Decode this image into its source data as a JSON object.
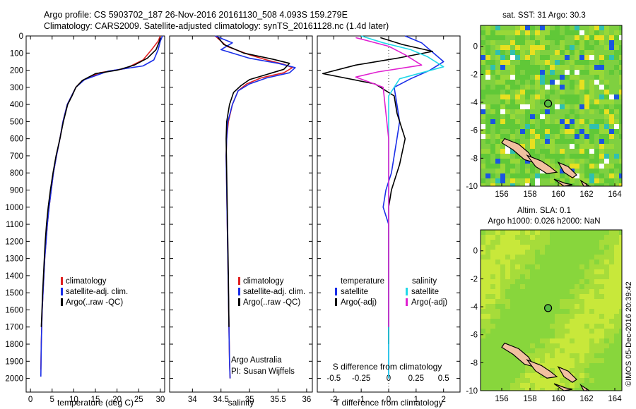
{
  "header": {
    "line1": "Argo profile: CS 5903702_187 26-Nov-2016 20161130_508 4.093S 159.279E",
    "line2": "Climatology: CARS2009. Satellite-adjusted climatology: synTS_20161128.nc (1.4d later)"
  },
  "colors": {
    "climatology": "#e02020",
    "satellite": "#1a2ee8",
    "argo": "#000000",
    "sat_salinity": "#22d8e8",
    "argo_salinity_diff": "#e020d0",
    "land": "#f2c0a0"
  },
  "chart_data": [
    {
      "type": "line",
      "id": "temperature",
      "xlabel": "temperature (deg C)",
      "xlim": [
        -1,
        31
      ],
      "xticks": [
        0,
        5,
        10,
        15,
        20,
        25,
        30
      ],
      "ylim": [
        2080,
        0
      ],
      "yticks": [
        0,
        100,
        200,
        300,
        400,
        500,
        600,
        700,
        800,
        900,
        1000,
        1100,
        1200,
        1300,
        1400,
        1500,
        1600,
        1700,
        1800,
        1900,
        2000
      ],
      "legend": [
        "climatology",
        "satellite-adj. clim.",
        "Argo(..raw -QC)"
      ],
      "series": [
        {
          "name": "climatology",
          "x": [
            30,
            29.5,
            28,
            26,
            22,
            16,
            12,
            10.5,
            9.5,
            8.5,
            7.5,
            6.8,
            6,
            5.3,
            4.8,
            4.3,
            3.9,
            3.6,
            3.3,
            3.1,
            2.9,
            2.7,
            2.6,
            2.5,
            2.4
          ],
          "y": [
            0,
            30,
            80,
            140,
            190,
            215,
            260,
            300,
            350,
            400,
            500,
            600,
            700,
            800,
            900,
            1000,
            1100,
            1200,
            1300,
            1400,
            1500,
            1600,
            1700,
            1800,
            1950
          ]
        },
        {
          "name": "satellite-adj. clim.",
          "x": [
            30.5,
            30,
            29.5,
            28.5,
            26,
            18,
            12.5,
            10.5,
            9.5,
            8.5,
            7.5,
            6.8,
            6,
            5.3,
            4.8,
            4.3,
            3.9,
            3.6,
            3.3,
            3.1,
            2.9,
            2.7,
            2.6,
            2.5,
            2.4
          ],
          "y": [
            0,
            30,
            80,
            140,
            175,
            205,
            255,
            300,
            350,
            400,
            500,
            600,
            700,
            800,
            900,
            1000,
            1100,
            1200,
            1300,
            1400,
            1500,
            1600,
            1700,
            1800,
            1990
          ]
        },
        {
          "name": "Argo(..raw -QC)",
          "x": [
            30,
            29.8,
            29,
            27,
            24,
            20,
            15,
            12,
            10.5,
            9.6,
            8.6,
            7.6,
            6.8,
            5.9,
            5.2,
            4.6,
            4.1,
            3.7,
            3.4,
            3.2,
            3,
            2.8,
            2.65,
            2.5
          ],
          "y": [
            10,
            30,
            80,
            130,
            170,
            200,
            220,
            260,
            300,
            350,
            400,
            500,
            600,
            700,
            800,
            900,
            1000,
            1100,
            1200,
            1300,
            1400,
            1500,
            1600,
            1700
          ]
        }
      ]
    },
    {
      "type": "line",
      "id": "salinity",
      "xlabel": "salinity",
      "xlim": [
        33.6,
        36.1
      ],
      "xticks": [
        34,
        34.5,
        35,
        35.5,
        36
      ],
      "ylim": [
        2080,
        0
      ],
      "legend": [
        "climatology",
        "satellite-adj. clim.",
        "Argo(..raw -QC)"
      ],
      "annotation": [
        "Argo Australia",
        "PI: Susan Wijffels"
      ],
      "series": [
        {
          "name": "climatology",
          "x": [
            34.4,
            34.6,
            35.0,
            35.3,
            35.6,
            35.75,
            35.6,
            35.2,
            34.95,
            34.8,
            34.7,
            34.63,
            34.6,
            34.59,
            34.6,
            34.61,
            34.62,
            34.63,
            34.64,
            34.65,
            34.66
          ],
          "y": [
            0,
            60,
            110,
            140,
            165,
            185,
            215,
            245,
            280,
            320,
            400,
            500,
            600,
            700,
            900,
            1100,
            1300,
            1500,
            1700,
            1900,
            2000
          ]
        },
        {
          "name": "satellite-adj. clim.",
          "x": [
            34.4,
            34.7,
            34.5,
            35.0,
            35.5,
            35.8,
            35.7,
            35.3,
            35.0,
            34.8,
            34.7,
            34.62,
            34.6,
            34.59,
            34.6,
            34.61,
            34.62,
            34.63,
            34.64,
            34.65,
            34.66
          ],
          "y": [
            0,
            40,
            80,
            130,
            160,
            185,
            215,
            245,
            280,
            320,
            400,
            500,
            600,
            700,
            900,
            1100,
            1300,
            1500,
            1700,
            1900,
            2000
          ]
        },
        {
          "name": "Argo(..raw -QC)",
          "x": [
            34.45,
            34.55,
            34.9,
            35.4,
            35.7,
            35.6,
            35.3,
            35.0,
            34.85,
            34.72,
            34.65,
            34.6,
            34.59,
            34.6,
            34.61,
            34.62,
            34.63,
            34.64
          ],
          "y": [
            10,
            50,
            100,
            135,
            160,
            195,
            225,
            255,
            290,
            330,
            400,
            500,
            600,
            800,
            1000,
            1200,
            1400,
            1700
          ]
        }
      ]
    },
    {
      "type": "line",
      "id": "difference",
      "xlabel": "T difference from climatology",
      "xlabel_top": "S difference from climatology",
      "xlim": [
        -2.6,
        2.6
      ],
      "xticks": [
        -2,
        -1,
        0,
        1,
        2
      ],
      "xticks_top": [
        -0.5,
        -0.25,
        0,
        0.25,
        0.5
      ],
      "ylim": [
        2080,
        0
      ],
      "legend_temperature_title": "temperature",
      "legend_salinity_title": "salinity",
      "legend": [
        "satellite",
        "Argo(-adj)",
        "satellite",
        "Argo(-adj)"
      ],
      "series": [
        {
          "name": "satellite",
          "x": [
            0.6,
            1.2,
            2.0,
            1.5,
            0.8,
            0.2,
            0.3,
            0.4,
            0.3,
            0.2,
            0.1,
            -0.1,
            -0.2,
            0.0,
            0.0,
            0.0,
            0.0,
            0.0,
            0.0
          ],
          "y": [
            0,
            40,
            150,
            200,
            250,
            300,
            400,
            500,
            600,
            700,
            800,
            900,
            1000,
            1100,
            1300,
            1500,
            1700,
            1900,
            2000
          ]
        },
        {
          "name": "Argo(-adj)",
          "x": [
            -0.3,
            0.5,
            1.6,
            0.3,
            -1.2,
            -2.4,
            -0.5,
            0.2,
            0.3,
            0.6,
            0.4,
            0.1,
            0.0,
            0.0,
            0.0,
            0.0,
            0.0,
            0.0
          ],
          "y": [
            10,
            50,
            90,
            130,
            170,
            220,
            280,
            350,
            450,
            600,
            750,
            900,
            1000,
            1200,
            1400,
            1550,
            1700,
            1800
          ]
        },
        {
          "name": "satellite",
          "x": [
            -0.25,
            -0.05,
            0.2,
            0.35,
            0.5,
            0.1,
            0.0,
            0.0,
            0.0,
            0.0,
            0.0
          ],
          "y": [
            0,
            40,
            80,
            120,
            180,
            250,
            350,
            600,
            1000,
            1500,
            2000
          ]
        },
        {
          "name": "Argo(-adj)",
          "x": [
            -0.3,
            0.0,
            0.15,
            0.3,
            -0.1,
            -0.3,
            -0.05,
            0.0,
            0.0,
            0.0
          ],
          "y": [
            10,
            60,
            110,
            170,
            210,
            240,
            300,
            600,
            1000,
            1700
          ]
        }
      ]
    },
    {
      "type": "heatmap",
      "id": "sst-map",
      "title": "sat. SST: 31 Argo: 30.3",
      "xticks": [
        156,
        158,
        160,
        162,
        164
      ],
      "yticks": [
        0,
        -2,
        -4,
        -6,
        -8,
        -10
      ],
      "xlim": [
        154.5,
        164.5
      ],
      "ylim": [
        -10,
        1.5
      ],
      "float_position": [
        159.279,
        -4.093
      ]
    },
    {
      "type": "heatmap",
      "id": "sla-map",
      "title": "Altim. SLA: 0.1",
      "subtitle": "Argo h1000: 0.026 h2000: NaN",
      "xticks": [
        156,
        158,
        160,
        162,
        164
      ],
      "yticks": [
        0,
        -2,
        -4,
        -6,
        -8,
        -10
      ],
      "xlim": [
        154.5,
        164.5
      ],
      "ylim": [
        -10,
        1.5
      ],
      "float_position": [
        159.279,
        -4.093
      ]
    }
  ],
  "footer_stamp": "©IMOS 05-Dec-2016 20:39:42"
}
